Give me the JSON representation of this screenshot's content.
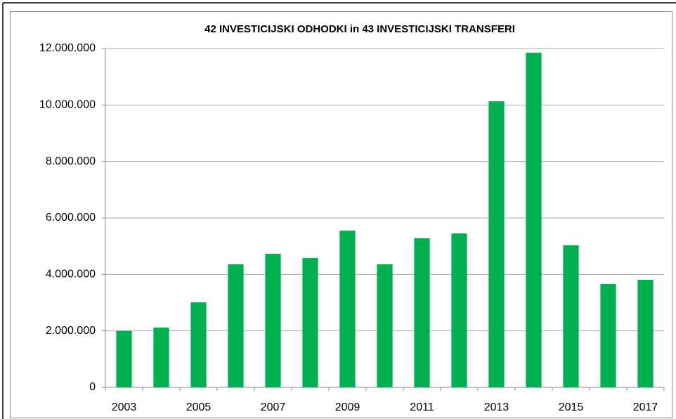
{
  "chart_data": {
    "type": "bar",
    "title": "42 INVESTICIJSKI ODHODKI in 43 INVESTICIJSKI TRANSFERI",
    "categories": [
      "2003",
      null,
      "2005",
      null,
      "2007",
      null,
      "2009",
      null,
      "2011",
      null,
      "2013",
      null,
      "2015",
      null,
      "2017"
    ],
    "values": [
      2000000,
      2120000,
      3010000,
      4360000,
      4730000,
      4580000,
      5550000,
      4360000,
      5280000,
      5450000,
      10130000,
      11850000,
      5030000,
      3660000,
      3810000
    ],
    "color": "#00b050",
    "ylim": [
      0,
      12000000
    ],
    "yticks": [
      0,
      {
        "value": 2000000,
        "label": "2.000.000"
      },
      {
        "value": 4000000,
        "label": "4.000.000"
      },
      {
        "value": 6000000,
        "label": "6.000.000"
      },
      {
        "value": 8000000,
        "label": "8.000.000"
      },
      {
        "value": 10000000,
        "label": "10.000.000"
      },
      {
        "value": 12000000,
        "label": "12.000.000"
      }
    ],
    "grid": true
  }
}
